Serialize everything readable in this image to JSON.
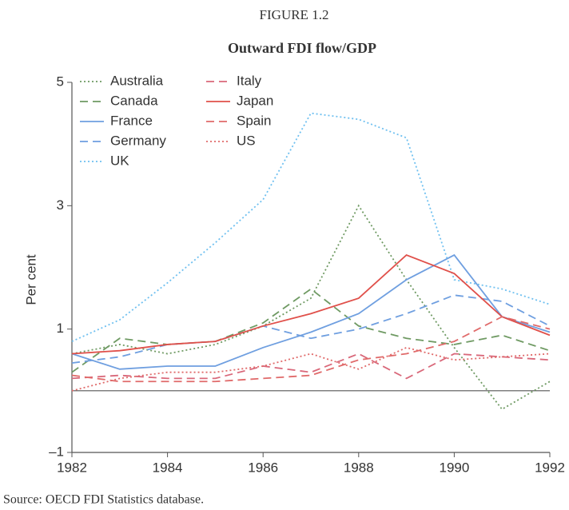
{
  "chart_data": {
    "type": "line",
    "figure_label": "FIGURE 1.2",
    "title": "Outward FDI flow/GDP",
    "ylabel": "Per cent",
    "source": "Source: OECD FDI Statistics database.",
    "x": [
      1982,
      1983,
      1984,
      1985,
      1986,
      1987,
      1988,
      1989,
      1990,
      1991,
      1992
    ],
    "xlim": [
      1982,
      1992
    ],
    "xticks": [
      1982,
      1984,
      1986,
      1988,
      1990,
      1992
    ],
    "ylim": [
      -1,
      5
    ],
    "yticks": [
      {
        "value": -1,
        "label": "–1"
      },
      1,
      3,
      5
    ],
    "legend": "top-left",
    "series": [
      {
        "name": "Australia",
        "color": "#6f9a63",
        "style": "dotted",
        "values": [
          0.6,
          0.75,
          0.6,
          0.75,
          1.05,
          1.5,
          3.0,
          1.8,
          0.7,
          -0.3,
          0.15
        ]
      },
      {
        "name": "Canada",
        "color": "#6f9a63",
        "style": "dashed",
        "values": [
          0.3,
          0.85,
          0.75,
          0.8,
          1.1,
          1.65,
          1.05,
          0.85,
          0.75,
          0.9,
          0.65
        ]
      },
      {
        "name": "France",
        "color": "#6f9fe0",
        "style": "solid",
        "values": [
          0.6,
          0.35,
          0.4,
          0.4,
          0.7,
          0.95,
          1.25,
          1.8,
          2.2,
          1.2,
          0.95
        ]
      },
      {
        "name": "Germany",
        "color": "#6f9fe0",
        "style": "dashed",
        "values": [
          0.45,
          0.55,
          0.75,
          0.8,
          1.05,
          0.85,
          1.0,
          1.25,
          1.55,
          1.45,
          1.05
        ]
      },
      {
        "name": "UK",
        "color": "#6fc0f0",
        "style": "dotted",
        "values": [
          0.8,
          1.15,
          1.75,
          2.4,
          3.1,
          4.5,
          4.4,
          4.1,
          1.8,
          1.65,
          1.4
        ]
      },
      {
        "name": "Italy",
        "color": "#d9687a",
        "style": "dashed",
        "values": [
          0.2,
          0.25,
          0.2,
          0.2,
          0.4,
          0.3,
          0.6,
          0.2,
          0.6,
          0.55,
          0.5
        ]
      },
      {
        "name": "Japan",
        "color": "#e0504a",
        "style": "solid",
        "values": [
          0.6,
          0.65,
          0.75,
          0.8,
          1.05,
          1.25,
          1.5,
          2.2,
          1.9,
          1.2,
          0.9
        ]
      },
      {
        "name": "Spain",
        "color": "#e06a6a",
        "style": "dashed",
        "values": [
          0.25,
          0.15,
          0.15,
          0.15,
          0.2,
          0.25,
          0.5,
          0.6,
          0.8,
          1.2,
          1.0
        ]
      },
      {
        "name": "US",
        "color": "#e06a6a",
        "style": "dotted",
        "values": [
          0.0,
          0.2,
          0.3,
          0.3,
          0.4,
          0.6,
          0.35,
          0.7,
          0.5,
          0.55,
          0.6
        ]
      }
    ]
  }
}
